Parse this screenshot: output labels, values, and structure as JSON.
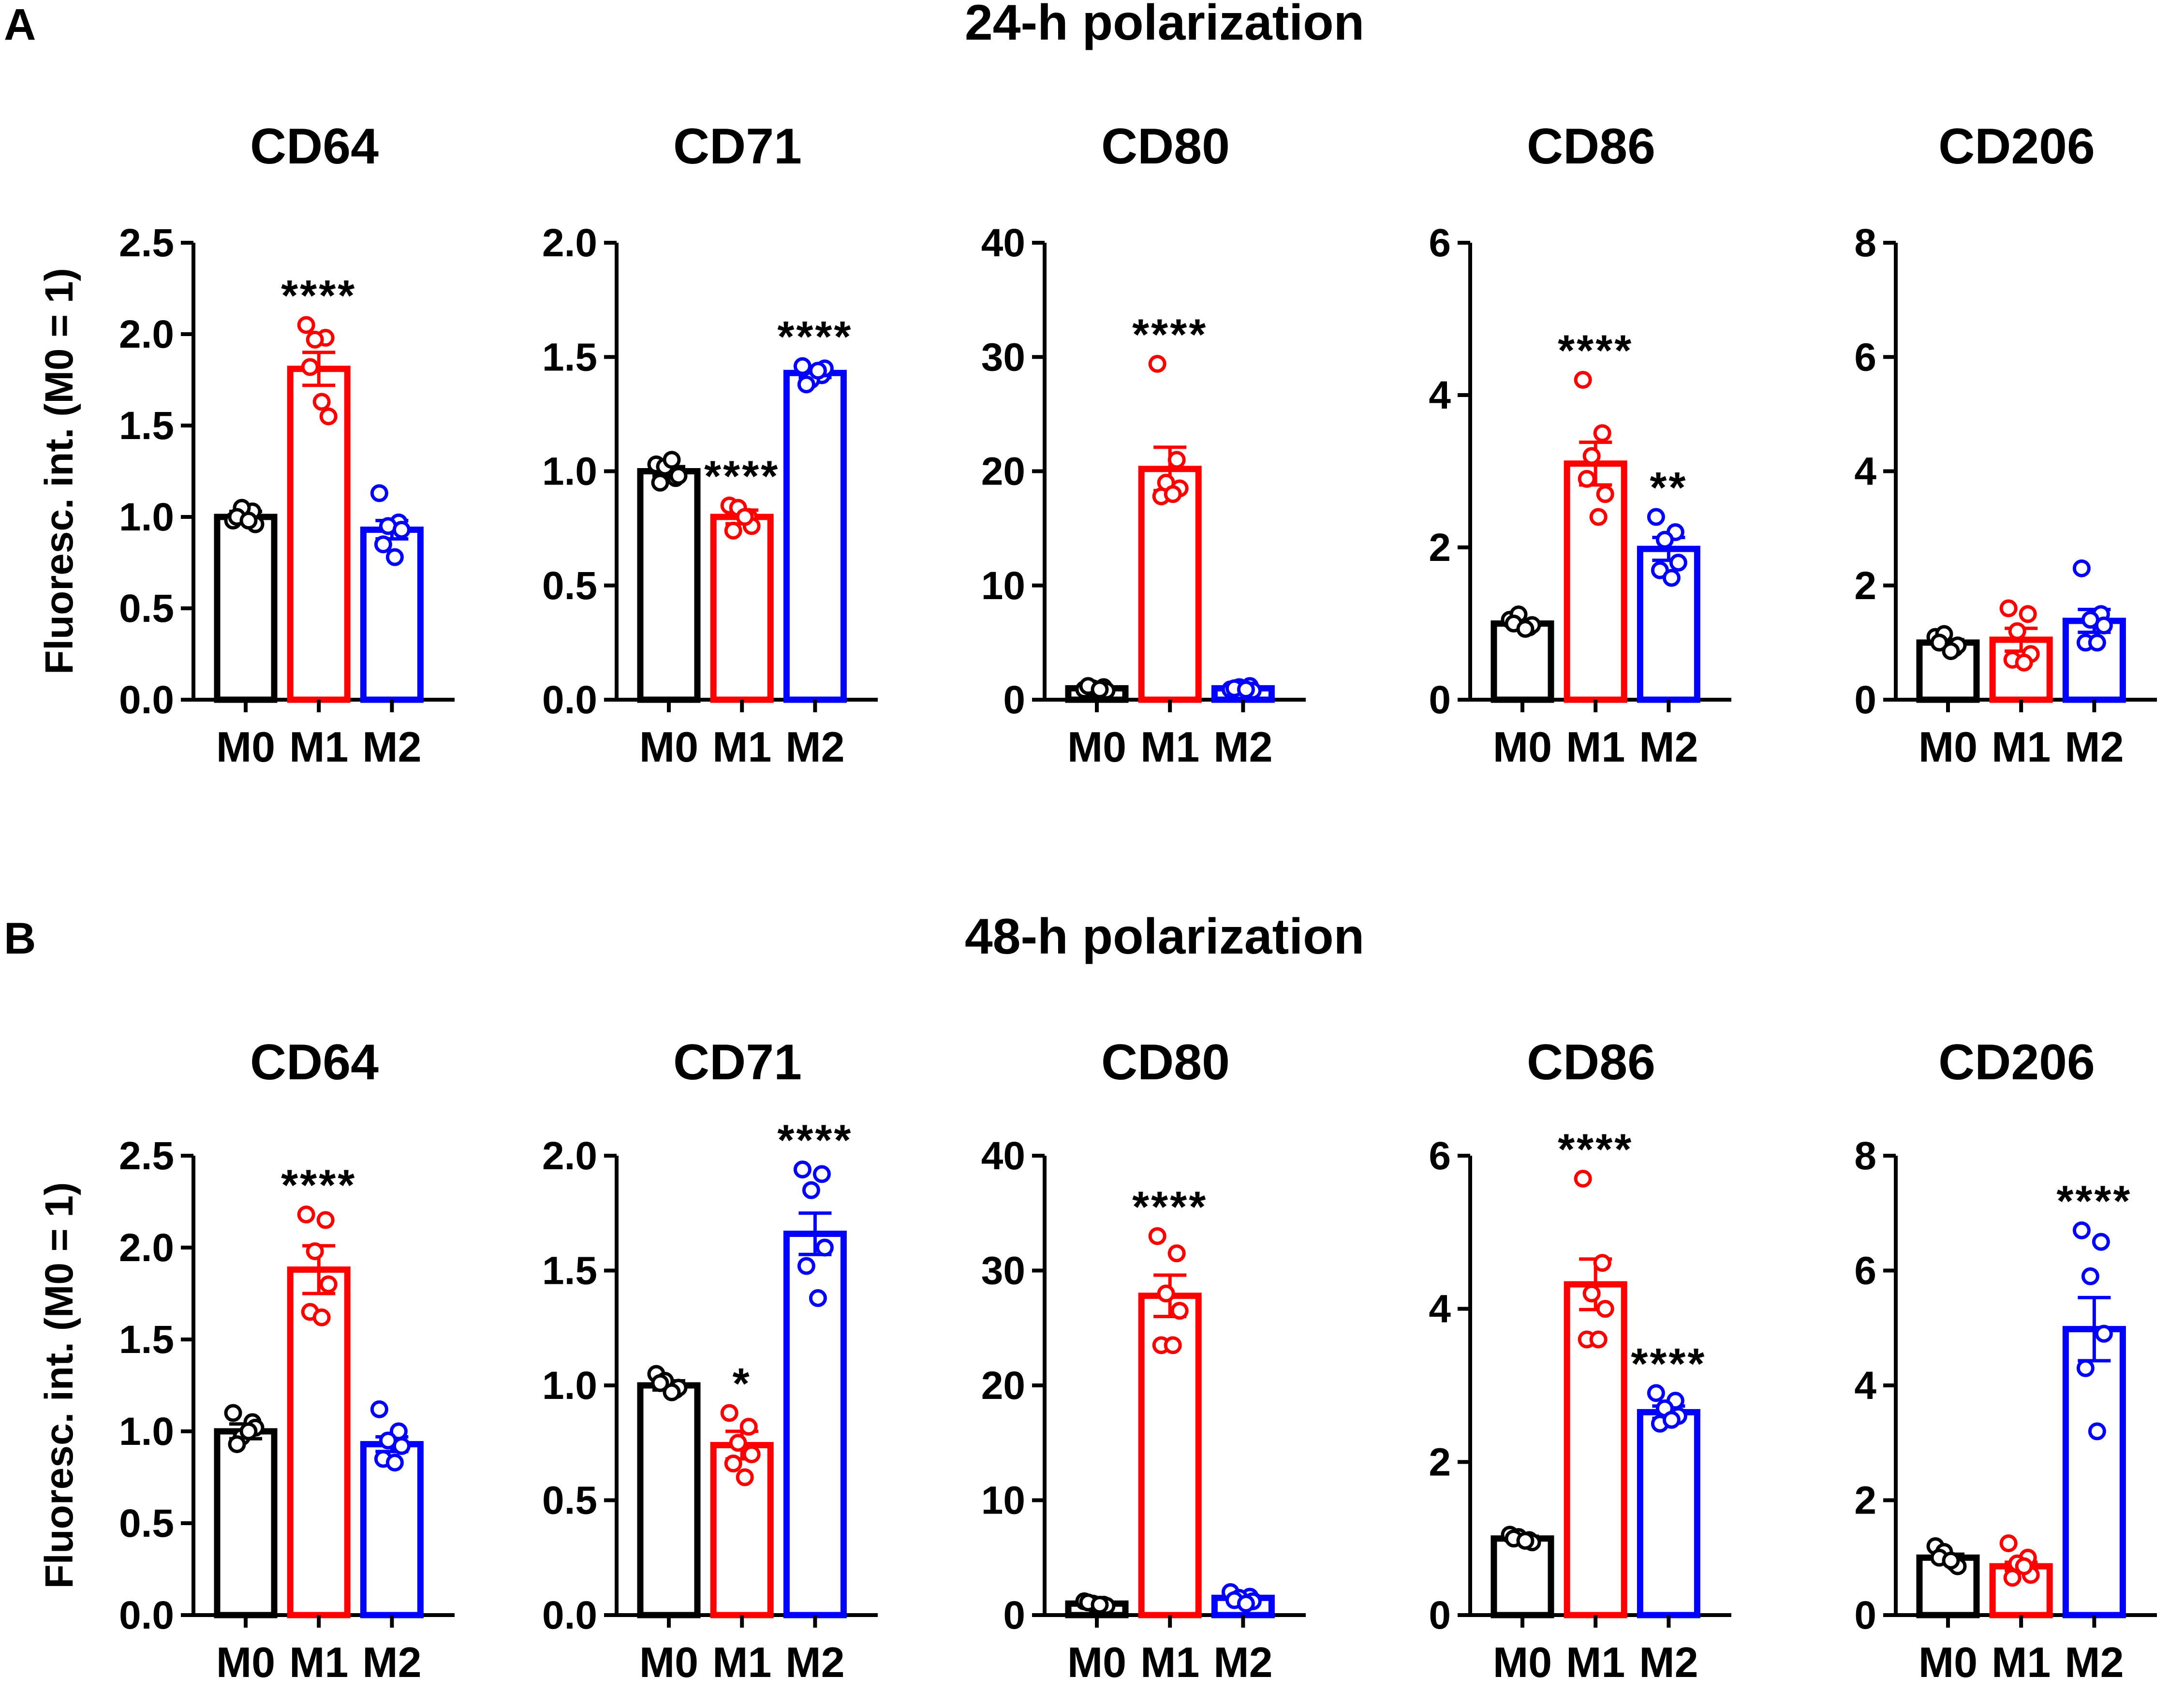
{
  "colors": {
    "M0": "#000000",
    "M1": "#ff0000",
    "M2": "#0000ff"
  },
  "rows": [
    {
      "panel": "A",
      "title": "24-h polarization"
    },
    {
      "panel": "B",
      "title": "48-h polarization"
    }
  ],
  "ylabel": "Fluoresc. int. (M0 = 1)",
  "chart_data": [
    {
      "type": "bar",
      "row": 0,
      "col": 0,
      "title": "CD64",
      "categories": [
        "M0",
        "M1",
        "M2"
      ],
      "ylim": [
        0,
        2.5
      ],
      "yticks": [
        "0.0",
        "0.5",
        "1.0",
        "1.5",
        "2.0",
        "2.5"
      ],
      "values": [
        1.0,
        1.81,
        0.93
      ],
      "sem": [
        0.03,
        0.09,
        0.05
      ],
      "significance": [
        "",
        "****",
        ""
      ],
      "points": [
        [
          0.98,
          1.03,
          1.05,
          0.96,
          1.0,
          0.98
        ],
        [
          2.05,
          1.98,
          1.97,
          1.55,
          1.82,
          1.63
        ],
        [
          1.13,
          0.97,
          0.95,
          0.93,
          0.85,
          0.78
        ]
      ]
    },
    {
      "type": "bar",
      "row": 0,
      "col": 1,
      "title": "CD71",
      "categories": [
        "M0",
        "M1",
        "M2"
      ],
      "ylim": [
        0,
        2.0
      ],
      "yticks": [
        "0.0",
        "0.5",
        "1.0",
        "1.5",
        "2.0"
      ],
      "values": [
        1.0,
        0.8,
        1.43
      ],
      "sem": [
        0.02,
        0.03,
        0.02
      ],
      "significance": [
        "",
        "****",
        "****"
      ],
      "points": [
        [
          1.03,
          0.97,
          1.02,
          0.98,
          0.95,
          1.05
        ],
        [
          0.85,
          0.8,
          0.84,
          0.76,
          0.74,
          0.8
        ],
        [
          1.46,
          1.42,
          1.4,
          1.45,
          1.38,
          1.44
        ]
      ]
    },
    {
      "type": "bar",
      "row": 0,
      "col": 2,
      "title": "CD80",
      "categories": [
        "M0",
        "M1",
        "M2"
      ],
      "ylim": [
        0,
        40
      ],
      "yticks": [
        "0",
        "10",
        "20",
        "30",
        "40"
      ],
      "values": [
        1.0,
        20.2,
        1.0
      ],
      "sem": [
        0.1,
        1.9,
        0.1
      ],
      "significance": [
        "",
        "****",
        ""
      ],
      "points": [
        [
          0.9,
          1.1,
          1.0,
          0.8,
          1.2,
          0.9
        ],
        [
          29.4,
          21.0,
          19.0,
          18.5,
          17.8,
          18.0
        ],
        [
          0.9,
          1.2,
          1.1,
          0.8,
          1.0,
          0.9
        ]
      ]
    },
    {
      "type": "bar",
      "row": 0,
      "col": 3,
      "title": "CD86",
      "categories": [
        "M0",
        "M1",
        "M2"
      ],
      "ylim": [
        0,
        6
      ],
      "yticks": [
        "0",
        "2",
        "4",
        "6"
      ],
      "values": [
        1.0,
        3.1,
        1.98
      ],
      "sem": [
        0.03,
        0.28,
        0.15
      ],
      "significance": [
        "",
        "****",
        "**"
      ],
      "points": [
        [
          1.05,
          0.95,
          1.12,
          0.98,
          1.0,
          0.93
        ],
        [
          4.2,
          3.5,
          3.2,
          2.7,
          2.9,
          2.4
        ],
        [
          2.4,
          2.2,
          2.1,
          1.8,
          1.7,
          1.6
        ]
      ]
    },
    {
      "type": "bar",
      "row": 0,
      "col": 4,
      "title": "CD206",
      "categories": [
        "M0",
        "M1",
        "M2"
      ],
      "ylim": [
        0,
        8
      ],
      "yticks": [
        "0",
        "2",
        "4",
        "6",
        "8"
      ],
      "values": [
        1.0,
        1.05,
        1.38
      ],
      "sem": [
        0.05,
        0.2,
        0.2
      ],
      "significance": [
        "",
        "",
        ""
      ],
      "points": [
        [
          1.1,
          0.9,
          1.15,
          0.95,
          1.0,
          0.85
        ],
        [
          1.6,
          1.5,
          1.2,
          0.8,
          0.7,
          0.65
        ],
        [
          2.3,
          1.5,
          1.4,
          1.3,
          1.0,
          1.0
        ]
      ]
    },
    {
      "type": "bar",
      "row": 1,
      "col": 0,
      "title": "CD64",
      "categories": [
        "M0",
        "M1",
        "M2"
      ],
      "ylim": [
        0,
        2.5
      ],
      "yticks": [
        "0.0",
        "0.5",
        "1.0",
        "1.5",
        "2.0",
        "2.5"
      ],
      "values": [
        1.0,
        1.88,
        0.93
      ],
      "sem": [
        0.04,
        0.13,
        0.04
      ],
      "significance": [
        "",
        "****",
        ""
      ],
      "points": [
        [
          1.1,
          1.05,
          0.97,
          1.02,
          0.93,
          1.0
        ],
        [
          2.18,
          2.15,
          1.98,
          1.8,
          1.65,
          1.62
        ],
        [
          1.12,
          1.0,
          0.95,
          0.92,
          0.85,
          0.83
        ]
      ]
    },
    {
      "type": "bar",
      "row": 1,
      "col": 1,
      "title": "CD71",
      "categories": [
        "M0",
        "M1",
        "M2"
      ],
      "ylim": [
        0,
        2.0
      ],
      "yticks": [
        "0.0",
        "0.5",
        "1.0",
        "1.5",
        "2.0"
      ],
      "values": [
        1.0,
        0.74,
        1.66
      ],
      "sem": [
        0.02,
        0.06,
        0.09
      ],
      "significance": [
        "",
        "*",
        "****"
      ],
      "points": [
        [
          1.05,
          0.98,
          1.02,
          0.99,
          1.01,
          0.97
        ],
        [
          0.88,
          0.82,
          0.75,
          0.7,
          0.66,
          0.6
        ],
        [
          1.94,
          1.92,
          1.85,
          1.6,
          1.52,
          1.38
        ]
      ]
    },
    {
      "type": "bar",
      "row": 1,
      "col": 2,
      "title": "CD80",
      "categories": [
        "M0",
        "M1",
        "M2"
      ],
      "ylim": [
        0,
        40
      ],
      "yticks": [
        "0",
        "10",
        "20",
        "30",
        "40"
      ],
      "values": [
        1.0,
        27.8,
        1.5
      ],
      "sem": [
        0.1,
        1.8,
        0.2
      ],
      "significance": [
        "",
        "****",
        ""
      ],
      "points": [
        [
          1.2,
          0.9,
          1.0,
          0.8,
          1.1,
          0.9
        ],
        [
          33.0,
          31.5,
          28.0,
          26.5,
          23.5,
          23.5
        ],
        [
          2.0,
          1.6,
          1.5,
          1.2,
          1.3,
          1.0
        ]
      ]
    },
    {
      "type": "bar",
      "row": 1,
      "col": 3,
      "title": "CD86",
      "categories": [
        "M0",
        "M1",
        "M2"
      ],
      "ylim": [
        0,
        6
      ],
      "yticks": [
        "0",
        "2",
        "4",
        "6"
      ],
      "values": [
        1.0,
        4.32,
        2.65
      ],
      "sem": [
        0.03,
        0.33,
        0.08
      ],
      "significance": [
        "",
        "****",
        "****"
      ],
      "points": [
        [
          1.05,
          0.98,
          1.02,
          0.95,
          1.0,
          0.97
        ],
        [
          5.7,
          4.6,
          4.2,
          4.0,
          3.6,
          3.6
        ],
        [
          2.9,
          2.8,
          2.7,
          2.6,
          2.5,
          2.55
        ]
      ]
    },
    {
      "type": "bar",
      "row": 1,
      "col": 4,
      "title": "CD206",
      "categories": [
        "M0",
        "M1",
        "M2"
      ],
      "ylim": [
        0,
        8
      ],
      "yticks": [
        "0",
        "2",
        "4",
        "6",
        "8"
      ],
      "values": [
        1.0,
        0.85,
        4.98
      ],
      "sem": [
        0.06,
        0.07,
        0.55
      ],
      "significance": [
        "",
        "",
        "****"
      ],
      "points": [
        [
          1.2,
          0.9,
          1.1,
          0.85,
          1.0,
          0.95
        ],
        [
          1.25,
          1.0,
          0.9,
          0.7,
          0.65,
          0.85
        ],
        [
          6.7,
          6.5,
          5.9,
          4.9,
          4.3,
          3.2
        ]
      ]
    }
  ]
}
